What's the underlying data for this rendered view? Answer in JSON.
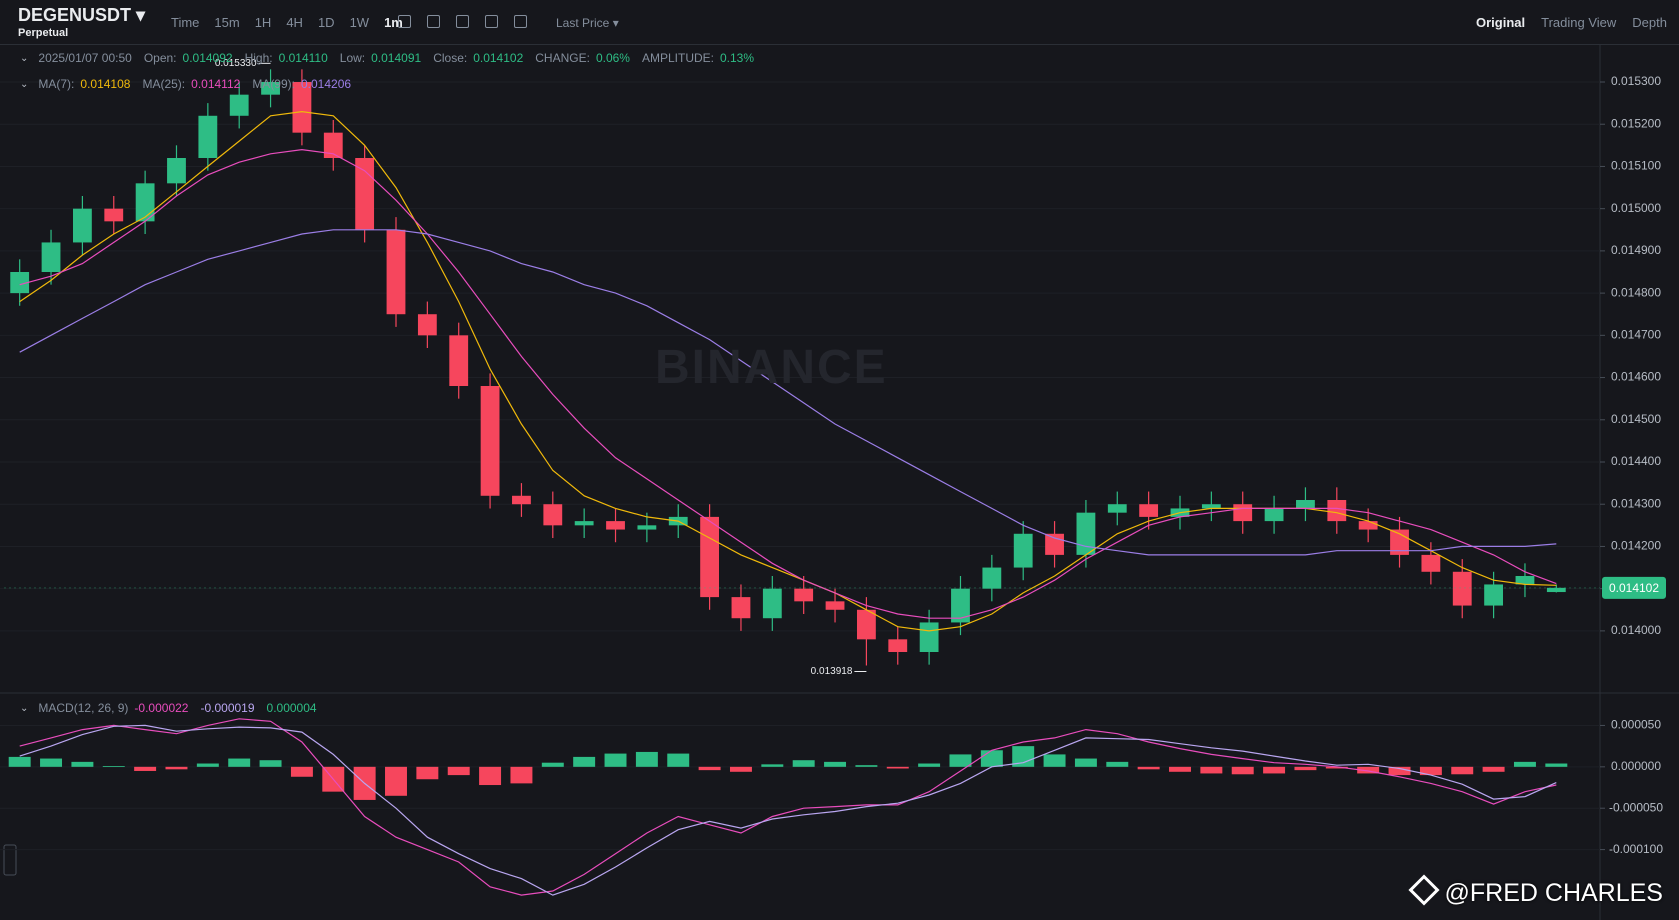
{
  "header": {
    "symbol": "DEGENUSDT",
    "contract": "Perpetual",
    "intervals": [
      "Time",
      "15m",
      "1H",
      "4H",
      "1D",
      "1W",
      "1m"
    ],
    "price_type": "Last Price",
    "views": [
      "Original",
      "Trading View",
      "Depth"
    ]
  },
  "info": {
    "date": "2025/01/07 00:50",
    "fields": [
      {
        "label": "Open:",
        "value": "0.014092"
      },
      {
        "label": "High:",
        "value": "0.014110"
      },
      {
        "label": "Low:",
        "value": "0.014091"
      },
      {
        "label": "Close:",
        "value": "0.014102"
      },
      {
        "label": "CHANGE:",
        "value": "0.06%"
      },
      {
        "label": "AMPLITUDE:",
        "value": "0.13%"
      }
    ]
  },
  "chart_data": [
    {
      "type": "candlestick",
      "colors": {
        "up": "#2ebd85",
        "down": "#f6465d"
      },
      "open": [
        0.0148,
        0.01485,
        0.01492,
        0.015,
        0.01497,
        0.01506,
        0.01512,
        0.01522,
        0.01527,
        0.0153,
        0.01518,
        0.01512,
        0.01495,
        0.01475,
        0.0147,
        0.01458,
        0.01432,
        0.0143,
        0.01425,
        0.01426,
        0.01424,
        0.01425,
        0.01427,
        0.01408,
        0.01403,
        0.0141,
        0.01407,
        0.01405,
        0.01398,
        0.01395,
        0.01402,
        0.0141,
        0.01415,
        0.01423,
        0.01418,
        0.01428,
        0.0143,
        0.01427,
        0.01429,
        0.0143,
        0.01426,
        0.01429,
        0.01431,
        0.01426,
        0.01424,
        0.01418,
        0.01414,
        0.01406,
        0.01411,
        0.014092
      ],
      "high": [
        0.01488,
        0.01495,
        0.01503,
        0.01503,
        0.01509,
        0.01515,
        0.01525,
        0.0153,
        0.01533,
        0.01533,
        0.01521,
        0.01515,
        0.01498,
        0.01478,
        0.01473,
        0.01461,
        0.01435,
        0.01433,
        0.01429,
        0.01429,
        0.01428,
        0.0143,
        0.0143,
        0.01411,
        0.01413,
        0.01413,
        0.0141,
        0.01408,
        0.01401,
        0.01405,
        0.01413,
        0.01418,
        0.01426,
        0.01426,
        0.01431,
        0.01433,
        0.01433,
        0.01432,
        0.01433,
        0.01433,
        0.01432,
        0.01434,
        0.01434,
        0.01429,
        0.01427,
        0.01421,
        0.01417,
        0.01414,
        0.01416,
        0.01411
      ],
      "low": [
        0.01477,
        0.01482,
        0.01489,
        0.01494,
        0.01494,
        0.01503,
        0.01509,
        0.01519,
        0.01524,
        0.01515,
        0.01509,
        0.01492,
        0.01472,
        0.01467,
        0.01455,
        0.01429,
        0.01427,
        0.01422,
        0.01422,
        0.01421,
        0.01421,
        0.01422,
        0.01405,
        0.014,
        0.014,
        0.01404,
        0.01402,
        0.013918,
        0.01392,
        0.01392,
        0.01399,
        0.01407,
        0.01412,
        0.01415,
        0.01415,
        0.01425,
        0.01424,
        0.01424,
        0.01426,
        0.01423,
        0.01423,
        0.01426,
        0.01423,
        0.01421,
        0.01415,
        0.01411,
        0.01403,
        0.01403,
        0.01408,
        0.014091
      ],
      "close": [
        0.01485,
        0.01492,
        0.015,
        0.01497,
        0.01506,
        0.01512,
        0.01522,
        0.01527,
        0.0153,
        0.01518,
        0.01512,
        0.01495,
        0.01475,
        0.0147,
        0.01458,
        0.01432,
        0.0143,
        0.01425,
        0.01426,
        0.01424,
        0.01425,
        0.01427,
        0.01408,
        0.01403,
        0.0141,
        0.01407,
        0.01405,
        0.01398,
        0.01395,
        0.01402,
        0.0141,
        0.01415,
        0.01423,
        0.01418,
        0.01428,
        0.0143,
        0.01427,
        0.01429,
        0.0143,
        0.01426,
        0.01429,
        0.01431,
        0.01426,
        0.01424,
        0.01418,
        0.01414,
        0.01406,
        0.01411,
        0.01413,
        0.014102
      ],
      "series": [
        {
          "name": "MA(7):",
          "legend_value": "0.014108",
          "color": "#f0b90b",
          "values": [
            0.01478,
            0.01483,
            0.01489,
            0.01494,
            0.01498,
            0.01504,
            0.0151,
            0.01516,
            0.01522,
            0.01523,
            0.01522,
            0.01515,
            0.01505,
            0.01492,
            0.01478,
            0.01462,
            0.01449,
            0.01438,
            0.01432,
            0.01429,
            0.01427,
            0.01426,
            0.01422,
            0.01418,
            0.01415,
            0.01412,
            0.01409,
            0.01405,
            0.01401,
            0.014,
            0.01401,
            0.01404,
            0.01409,
            0.01413,
            0.01418,
            0.01423,
            0.01426,
            0.01428,
            0.01429,
            0.01429,
            0.01429,
            0.01429,
            0.01428,
            0.01426,
            0.01423,
            0.01419,
            0.01415,
            0.01412,
            0.01411,
            0.014108
          ]
        },
        {
          "name": "MA(25):",
          "legend_value": "0.014112",
          "color": "#e84dbd",
          "values": [
            0.01482,
            0.01484,
            0.01487,
            0.01492,
            0.01497,
            0.01503,
            0.01508,
            0.01511,
            0.01513,
            0.01514,
            0.01513,
            0.01509,
            0.01502,
            0.01494,
            0.01485,
            0.01475,
            0.01465,
            0.01456,
            0.01448,
            0.01441,
            0.01436,
            0.01431,
            0.01426,
            0.01421,
            0.01416,
            0.01412,
            0.01409,
            0.01406,
            0.01404,
            0.01403,
            0.01403,
            0.01405,
            0.01408,
            0.01412,
            0.01417,
            0.01421,
            0.01425,
            0.01427,
            0.01428,
            0.01429,
            0.01429,
            0.01429,
            0.01429,
            0.01428,
            0.01426,
            0.01424,
            0.01421,
            0.01418,
            0.01414,
            0.014112
          ]
        },
        {
          "name": "MA(99):",
          "legend_value": "0.014206",
          "color": "#9b7ee6",
          "values": [
            0.01466,
            0.0147,
            0.01474,
            0.01478,
            0.01482,
            0.01485,
            0.01488,
            0.0149,
            0.01492,
            0.01494,
            0.01495,
            0.01495,
            0.01495,
            0.01494,
            0.01492,
            0.0149,
            0.01487,
            0.01485,
            0.01482,
            0.0148,
            0.01477,
            0.01473,
            0.01469,
            0.01464,
            0.01459,
            0.01454,
            0.01449,
            0.01445,
            0.01441,
            0.01437,
            0.01433,
            0.01429,
            0.01425,
            0.01422,
            0.0142,
            0.01419,
            0.01418,
            0.01418,
            0.01418,
            0.01418,
            0.01418,
            0.01418,
            0.01419,
            0.01419,
            0.01419,
            0.01419,
            0.0142,
            0.0142,
            0.0142,
            0.014206
          ]
        }
      ],
      "ylim": [
        0.01386,
        0.01539
      ],
      "yticks": [
        {
          "value": 0.014,
          "label": "0.014000"
        },
        {
          "value": 0.0141,
          "label": "0.014100"
        },
        {
          "value": 0.0142,
          "label": "0.014200"
        },
        {
          "value": 0.0143,
          "label": "0.014300"
        },
        {
          "value": 0.0144,
          "label": "0.014400"
        },
        {
          "value": 0.0145,
          "label": "0.014500"
        },
        {
          "value": 0.0146,
          "label": "0.014600"
        },
        {
          "value": 0.0147,
          "label": "0.014700"
        },
        {
          "value": 0.0148,
          "label": "0.014800"
        },
        {
          "value": 0.0149,
          "label": "0.014900"
        },
        {
          "value": 0.015,
          "label": "0.015000"
        },
        {
          "value": 0.0151,
          "label": "0.015100"
        },
        {
          "value": 0.0152,
          "label": "0.015200"
        },
        {
          "value": 0.0153,
          "label": "0.015300"
        }
      ],
      "grid": true,
      "annotations": [
        {
          "value": 0.01533,
          "label": "0.015330"
        },
        {
          "value": 0.013918,
          "label": "0.013918"
        }
      ],
      "last_price": {
        "value": 0.014102,
        "label": "0.014102"
      }
    },
    {
      "type": "macd",
      "title": "MACD(12, 26, 9)",
      "colors": {
        "up": "#2ebd85",
        "down": "#f6465d"
      },
      "histogram": [
        1.2e-05,
        1e-05,
        6e-06,
        1e-06,
        -5e-06,
        -3e-06,
        4e-06,
        1e-05,
        8e-06,
        -1.2e-05,
        -3e-05,
        -4e-05,
        -3.5e-05,
        -1.5e-05,
        -1e-05,
        -2.2e-05,
        -2e-05,
        5e-06,
        1.2e-05,
        1.6e-05,
        1.8e-05,
        1.6e-05,
        -4e-06,
        -6e-06,
        3e-06,
        8e-06,
        6e-06,
        2e-06,
        -2e-06,
        4e-06,
        1.5e-05,
        2e-05,
        2.5e-05,
        1.5e-05,
        1e-05,
        6e-06,
        -3e-06,
        -6e-06,
        -8e-06,
        -9e-06,
        -8e-06,
        -4e-06,
        -2e-06,
        -8e-06,
        -1e-05,
        -1e-05,
        -9e-06,
        -6e-06,
        6e-06,
        4e-06
      ],
      "histogram_legend": "0.000004",
      "series": [
        {
          "legend_value": "-0.000022",
          "color": "#e84dbd",
          "values": [
            2.5e-05,
            3.5e-05,
            4.5e-05,
            5e-05,
            4.5e-05,
            4e-05,
            5e-05,
            5.8e-05,
            5.5e-05,
            3e-05,
            -1.5e-05,
            -6e-05,
            -8.5e-05,
            -0.0001,
            -0.000115,
            -0.000145,
            -0.000155,
            -0.00015,
            -0.00013,
            -0.000105,
            -8e-05,
            -6e-05,
            -7e-05,
            -8e-05,
            -6e-05,
            -5e-05,
            -4.8e-05,
            -4.6e-05,
            -4.6e-05,
            -3e-05,
            -5e-06,
            2e-05,
            3e-05,
            3.5e-05,
            4.5e-05,
            4e-05,
            3e-05,
            2.2e-05,
            1.5e-05,
            1e-05,
            5e-06,
            3e-06,
            0.0,
            -5e-06,
            -1.2e-05,
            -2e-05,
            -3e-05,
            -4.5e-05,
            -3e-05,
            -2.2e-05
          ]
        },
        {
          "legend_value": "-0.000019",
          "color": "#b9a6f0",
          "values": [
            1.3e-05,
            2.5e-05,
            3.9e-05,
            4.9e-05,
            5e-05,
            4.3e-05,
            4.6e-05,
            4.8e-05,
            4.7e-05,
            4.2e-05,
            1.5e-05,
            -2e-05,
            -5e-05,
            -8.5e-05,
            -0.000105,
            -0.000123,
            -0.000135,
            -0.000155,
            -0.000142,
            -0.000121,
            -9.8e-05,
            -7.6e-05,
            -6.6e-05,
            -7.4e-05,
            -6.3e-05,
            -5.8e-05,
            -5.4e-05,
            -4.8e-05,
            -4.4e-05,
            -3.4e-05,
            -2e-05,
            0.0,
            5e-06,
            2e-05,
            3.5e-05,
            3.4e-05,
            3.3e-05,
            2.8e-05,
            2.3e-05,
            1.9e-05,
            1.3e-05,
            7e-06,
            2e-06,
            3e-06,
            -2e-06,
            -1e-05,
            -2.1e-05,
            -3.9e-05,
            -3.6e-05,
            -1.9e-05
          ]
        }
      ],
      "ylim": [
        -0.000173,
        8.8e-05
      ],
      "yticks": [
        {
          "value": 5e-05,
          "label": "0.000050"
        },
        {
          "value": 0,
          "label": "0.000000"
        },
        {
          "value": -5e-05,
          "label": "-0.000050"
        },
        {
          "value": -0.0001,
          "label": "-0.000100"
        }
      ],
      "grid": true
    }
  ],
  "watermark": "BINANCE",
  "credit": "@FRED CHARLES"
}
